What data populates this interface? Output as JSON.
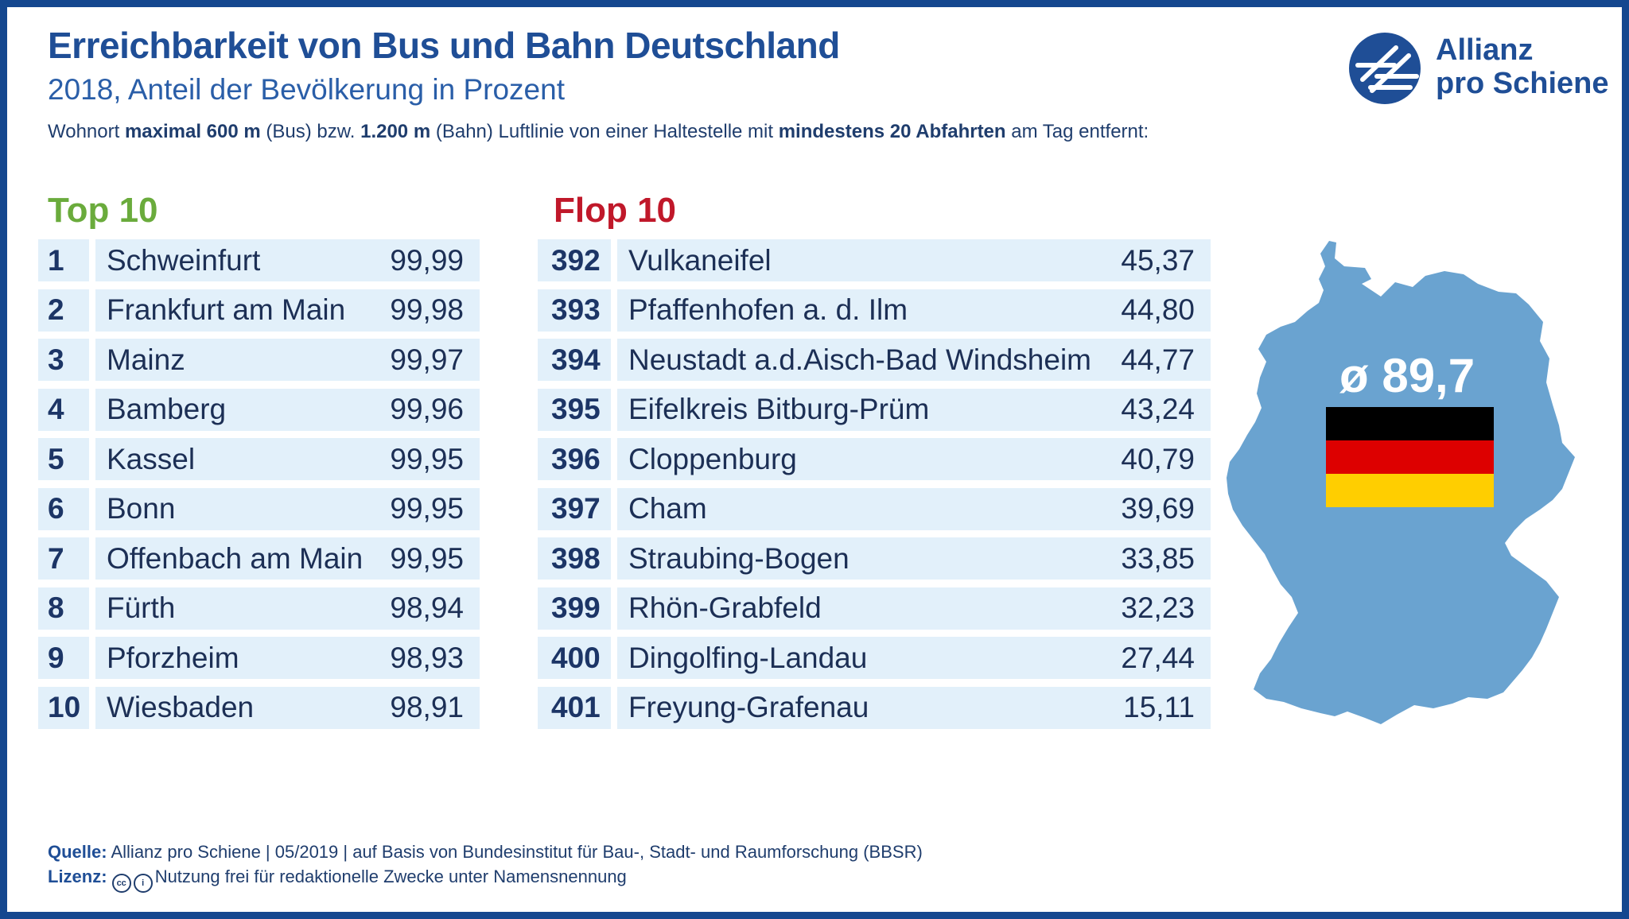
{
  "title": "Erreichbarkeit von Bus und Bahn Deutschland",
  "subtitle": "2018, Anteil der Bevölkerung in Prozent",
  "description": {
    "p1": "Wohnort ",
    "b1": "maximal 600 m",
    "p2": " (Bus) bzw. ",
    "b2": "1.200 m",
    "p3": " (Bahn) Luftlinie von einer Haltestelle mit ",
    "b3": "mindestens 20 Abfahrten",
    "p4": " am Tag entfernt:"
  },
  "logo": {
    "line1": "Allianz",
    "line2": "pro Schiene"
  },
  "colors": {
    "brand_blue": "#1f4e96",
    "top_green": "#6aab3c",
    "flop_red": "#c0182a",
    "row_bg": "#e2f0fa",
    "map_blue": "#6aa3d0"
  },
  "chart_data": {
    "type": "table",
    "average_label": "ø 89,7",
    "top": {
      "heading": "Top 10",
      "rows": [
        {
          "rank": "1",
          "name": "Schweinfurt",
          "value": "99,99"
        },
        {
          "rank": "2",
          "name": "Frankfurt am Main",
          "value": "99,98"
        },
        {
          "rank": "3",
          "name": "Mainz",
          "value": "99,97"
        },
        {
          "rank": "4",
          "name": "Bamberg",
          "value": "99,96"
        },
        {
          "rank": "5",
          "name": "Kassel",
          "value": "99,95"
        },
        {
          "rank": "6",
          "name": "Bonn",
          "value": "99,95"
        },
        {
          "rank": "7",
          "name": "Offenbach am Main",
          "value": "99,95"
        },
        {
          "rank": "8",
          "name": "Fürth",
          "value": "98,94"
        },
        {
          "rank": "9",
          "name": "Pforzheim",
          "value": "98,93"
        },
        {
          "rank": "10",
          "name": "Wiesbaden",
          "value": "98,91"
        }
      ]
    },
    "flop": {
      "heading": "Flop 10",
      "rows": [
        {
          "rank": "392",
          "name": "Vulkaneifel",
          "value": "45,37"
        },
        {
          "rank": "393",
          "name": "Pfaffenhofen a. d. Ilm",
          "value": "44,80"
        },
        {
          "rank": "394",
          "name": "Neustadt a.d.Aisch-Bad Windsheim",
          "value": "44,77"
        },
        {
          "rank": "395",
          "name": "Eifelkreis Bitburg-Prüm",
          "value": "43,24"
        },
        {
          "rank": "396",
          "name": "Cloppenburg",
          "value": "40,79"
        },
        {
          "rank": "397",
          "name": "Cham",
          "value": "39,69"
        },
        {
          "rank": "398",
          "name": "Straubing-Bogen",
          "value": "33,85"
        },
        {
          "rank": "399",
          "name": "Rhön-Grabfeld",
          "value": "32,23"
        },
        {
          "rank": "400",
          "name": "Dingolfing-Landau",
          "value": "27,44"
        },
        {
          "rank": "401",
          "name": "Freyung-Grafenau",
          "value": "15,11"
        }
      ]
    }
  },
  "footer": {
    "source_label": "Quelle:",
    "source_text": " Allianz pro Schiene | 05/2019 | auf Basis von Bundesinstitut für Bau-, Stadt- und Raumforschung (BBSR)",
    "license_label": "Lizenz:",
    "license_text": "Nutzung frei für redaktionelle Zwecke unter Namensnennung"
  }
}
